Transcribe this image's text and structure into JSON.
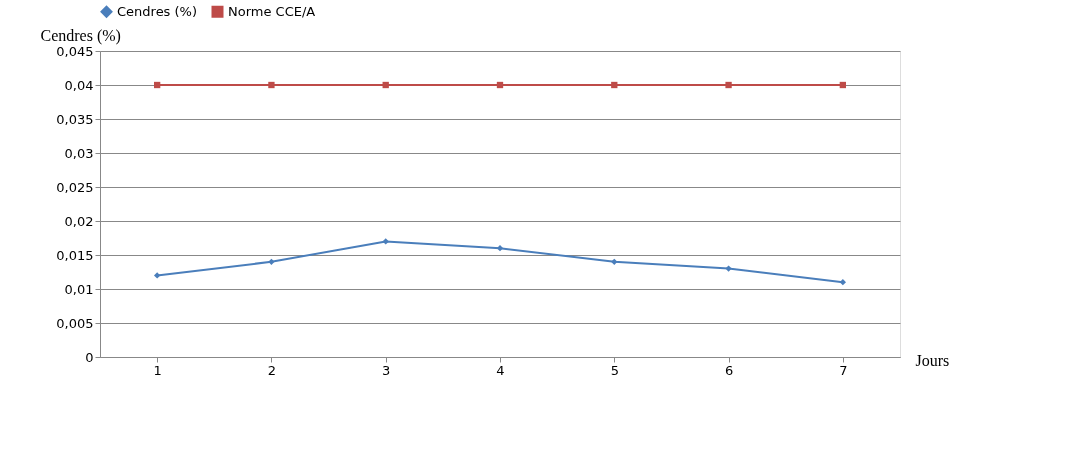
{
  "chart_data": {
    "type": "line",
    "ylabel": "Cendres (%)",
    "xlabel": "Jours",
    "categories": [
      "1",
      "2",
      "3",
      "4",
      "5",
      "6",
      "7"
    ],
    "series": [
      {
        "name": "Cendres (%)",
        "color": "#4a7ebb",
        "marker": "diamond",
        "values": [
          0.012,
          0.014,
          0.017,
          0.016,
          0.014,
          0.013,
          0.011
        ]
      },
      {
        "name": "Norme CCE/A",
        "color": "#be4b48",
        "marker": "square",
        "values": [
          0.04,
          0.04,
          0.04,
          0.04,
          0.04,
          0.04,
          0.04
        ]
      }
    ],
    "ylim": [
      0,
      0.045
    ],
    "yticks": [
      0,
      {
        "value": 0.005,
        "label": "0,005"
      },
      {
        "value": 0.01,
        "label": "0,01"
      },
      {
        "value": 0.015,
        "label": "0,015"
      },
      {
        "value": 0.02,
        "label": "0,02"
      },
      {
        "value": 0.025,
        "label": "0,025"
      },
      {
        "value": 0.03,
        "label": "0,03"
      },
      {
        "value": 0.035,
        "label": "0,035"
      },
      {
        "value": 0.04,
        "label": "0,04"
      },
      {
        "value": 0.045,
        "label": "0,045"
      }
    ],
    "grid": "y",
    "legend": "top",
    "line_style": "solid"
  }
}
